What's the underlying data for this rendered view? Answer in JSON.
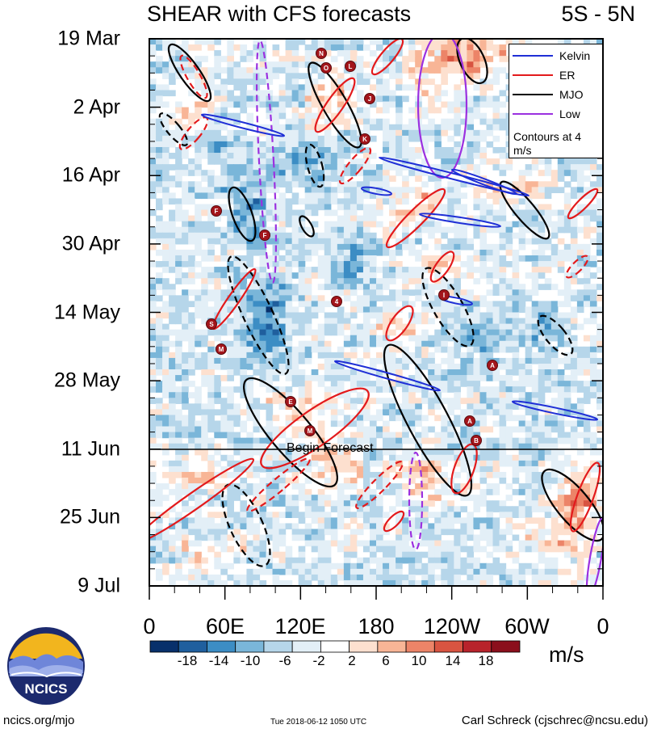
{
  "chart_data": {
    "type": "heatmap",
    "title": "SHEAR with CFS forecasts",
    "subtitle": "5S - 5N",
    "x_ticks": [
      "0",
      "60E",
      "120E",
      "180",
      "120W",
      "60W",
      "0"
    ],
    "y_ticks": [
      "19 Mar",
      "2 Apr",
      "16 Apr",
      "30 Apr",
      "14 May",
      "28 May",
      "11 Jun",
      "25 Jun",
      "9 Jul"
    ],
    "colorbar": {
      "units": "m/s",
      "tick_labels": [
        "-18",
        "-14",
        "-10",
        "-6",
        "-2",
        "2",
        "6",
        "10",
        "14",
        "18"
      ],
      "colors": [
        "#08306b",
        "#1f5f9e",
        "#3c8dc4",
        "#7ab6d9",
        "#b6d6ea",
        "#e3eff7",
        "#ffffff",
        "#fde0cf",
        "#f8b596",
        "#ec8468",
        "#d85441",
        "#b8232b",
        "#8b0f1c"
      ]
    },
    "legend": {
      "position": "top-right",
      "entries": [
        {
          "name": "Kelvin",
          "color": "#1f2fd6"
        },
        {
          "name": "ER",
          "color": "#e31a1c"
        },
        {
          "name": "MJO",
          "color": "#000000"
        },
        {
          "name": "Low",
          "color": "#9b30e0"
        }
      ],
      "note": "Contours at 4 m/s"
    },
    "annotation": "Begin Forecast",
    "storm_markers": [
      "N",
      "O",
      "L",
      "J",
      "K",
      "F",
      "F",
      "S",
      "M",
      "4",
      "I",
      "A",
      "E",
      "M",
      "A",
      "B"
    ]
  },
  "footer": {
    "left": "ncics.org/mjo",
    "middle": "Tue 2018-06-12 1050 UTC",
    "right": "Carl Schreck (cjschrec@ncsu.edu)"
  },
  "logo": {
    "text": "NCICS"
  }
}
